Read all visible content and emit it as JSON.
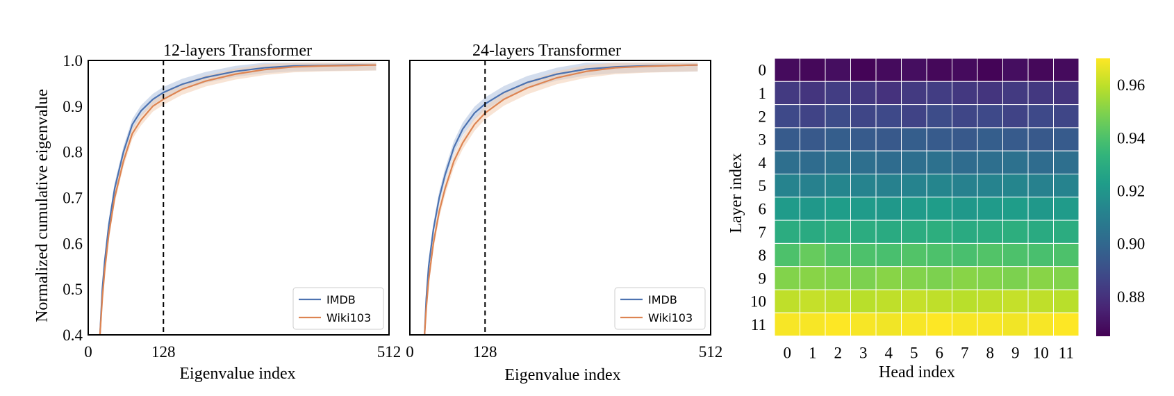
{
  "chart_data": [
    {
      "type": "line",
      "title": "12-layers Transformer",
      "xlabel": "Eigenvalue index",
      "ylabel": "Normalized cumulative eigenvalue",
      "xlim": [
        0,
        512
      ],
      "ylim": [
        0.4,
        1.0
      ],
      "xticks": [
        0,
        128,
        512
      ],
      "yticks": [
        0.4,
        0.5,
        0.6,
        0.7,
        0.8,
        0.9,
        1.0
      ],
      "vline": 128,
      "legend_position": "lower-right",
      "x": [
        20,
        24,
        28,
        35,
        45,
        60,
        75,
        90,
        110,
        128,
        160,
        200,
        250,
        300,
        350,
        400,
        450,
        490
      ],
      "series": [
        {
          "name": "IMDB",
          "color": "#4c72b0",
          "band_color": "#aec1de",
          "values": [
            0.4,
            0.5,
            0.56,
            0.64,
            0.72,
            0.8,
            0.86,
            0.89,
            0.915,
            0.93,
            0.948,
            0.963,
            0.976,
            0.984,
            0.988,
            0.989,
            0.99,
            0.99
          ],
          "band": 0.012
        },
        {
          "name": "Wiki103",
          "color": "#dd8452",
          "band_color": "#f3cdb3",
          "values": [
            0.4,
            0.48,
            0.54,
            0.62,
            0.7,
            0.78,
            0.84,
            0.87,
            0.9,
            0.915,
            0.937,
            0.955,
            0.97,
            0.98,
            0.986,
            0.988,
            0.989,
            0.99
          ],
          "band": 0.012
        }
      ]
    },
    {
      "type": "line",
      "title": "24-layers Transformer",
      "xlabel": "Eigenvalue index",
      "ylabel": "",
      "xlim": [
        0,
        512
      ],
      "ylim": [
        0.4,
        1.0
      ],
      "xticks": [
        0,
        128,
        512
      ],
      "vline": 128,
      "legend_position": "lower-right",
      "x": [
        25,
        28,
        32,
        40,
        50,
        60,
        75,
        90,
        110,
        128,
        160,
        200,
        250,
        300,
        350,
        400,
        450,
        490
      ],
      "series": [
        {
          "name": "IMDB",
          "color": "#4c72b0",
          "band_color": "#aec1de",
          "values": [
            0.4,
            0.48,
            0.55,
            0.63,
            0.7,
            0.75,
            0.81,
            0.85,
            0.885,
            0.905,
            0.93,
            0.952,
            0.97,
            0.981,
            0.986,
            0.988,
            0.989,
            0.99
          ],
          "band": 0.014
        },
        {
          "name": "Wiki103",
          "color": "#dd8452",
          "band_color": "#f3cdb3",
          "values": [
            0.4,
            0.46,
            0.52,
            0.6,
            0.67,
            0.72,
            0.78,
            0.82,
            0.86,
            0.885,
            0.915,
            0.94,
            0.962,
            0.976,
            0.984,
            0.987,
            0.989,
            0.99
          ],
          "band": 0.014
        }
      ]
    },
    {
      "type": "heatmap",
      "xlabel": "Head index",
      "ylabel": "Layer index",
      "x_categories": [
        "0",
        "1",
        "2",
        "3",
        "4",
        "5",
        "6",
        "7",
        "8",
        "9",
        "10",
        "11"
      ],
      "y_categories": [
        "0",
        "1",
        "2",
        "3",
        "4",
        "5",
        "6",
        "7",
        "8",
        "9",
        "10",
        "11"
      ],
      "colormap": "viridis",
      "vmin": 0.865,
      "vmax": 0.97,
      "colorbar_ticks": [
        0.88,
        0.9,
        0.92,
        0.94,
        0.96
      ],
      "values": [
        [
          0.868,
          0.867,
          0.869,
          0.866,
          0.868,
          0.869,
          0.867,
          0.868,
          0.866,
          0.869,
          0.867,
          0.868
        ],
        [
          0.883,
          0.881,
          0.884,
          0.882,
          0.88,
          0.883,
          0.884,
          0.882,
          0.881,
          0.883,
          0.882,
          0.881
        ],
        [
          0.888,
          0.886,
          0.889,
          0.887,
          0.888,
          0.886,
          0.889,
          0.887,
          0.888,
          0.886,
          0.888,
          0.887
        ],
        [
          0.895,
          0.894,
          0.896,
          0.895,
          0.894,
          0.896,
          0.895,
          0.894,
          0.896,
          0.895,
          0.894,
          0.895
        ],
        [
          0.903,
          0.902,
          0.904,
          0.903,
          0.902,
          0.903,
          0.904,
          0.902,
          0.903,
          0.904,
          0.902,
          0.903
        ],
        [
          0.912,
          0.911,
          0.913,
          0.912,
          0.911,
          0.912,
          0.913,
          0.911,
          0.912,
          0.913,
          0.911,
          0.912
        ],
        [
          0.922,
          0.921,
          0.923,
          0.922,
          0.921,
          0.922,
          0.923,
          0.921,
          0.922,
          0.923,
          0.921,
          0.922
        ],
        [
          0.93,
          0.929,
          0.931,
          0.93,
          0.929,
          0.93,
          0.931,
          0.929,
          0.93,
          0.931,
          0.929,
          0.93
        ],
        [
          0.94,
          0.945,
          0.941,
          0.94,
          0.939,
          0.941,
          0.94,
          0.939,
          0.941,
          0.94,
          0.939,
          0.94
        ],
        [
          0.95,
          0.951,
          0.95,
          0.949,
          0.951,
          0.95,
          0.949,
          0.951,
          0.95,
          0.949,
          0.951,
          0.95
        ],
        [
          0.96,
          0.961,
          0.96,
          0.959,
          0.96,
          0.961,
          0.96,
          0.959,
          0.96,
          0.961,
          0.96,
          0.959
        ],
        [
          0.969,
          0.969,
          0.97,
          0.969,
          0.968,
          0.969,
          0.97,
          0.969,
          0.969,
          0.968,
          0.969,
          0.97
        ]
      ]
    }
  ]
}
